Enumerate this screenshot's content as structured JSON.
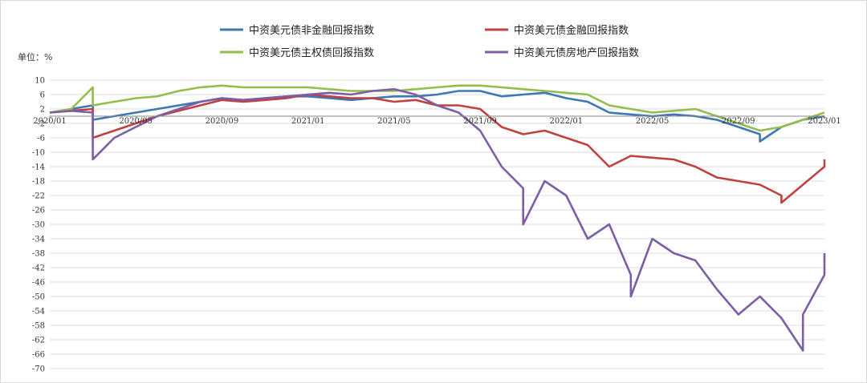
{
  "chart_data": {
    "type": "line",
    "unit_label": "单位：%",
    "y_ticks": [
      10,
      6,
      2,
      -2,
      -6,
      -10,
      -14,
      -18,
      -22,
      -26,
      -30,
      -34,
      -38,
      -42,
      -46,
      -50,
      -54,
      -58,
      -62,
      -66,
      -70
    ],
    "ylim": [
      -70,
      10
    ],
    "x_ticks": [
      "2020/01",
      "2020/05",
      "2020/09",
      "2021/01",
      "2021/05",
      "2021/09",
      "2022/01",
      "2022/05",
      "2022/09",
      "2023/01"
    ],
    "xlim": [
      "2020/01",
      "2023/01"
    ],
    "grid": true,
    "legend_position": "top",
    "series": [
      {
        "name": "中资美元债非金融回报指数",
        "color": "#3e77b6",
        "points": [
          [
            "2020/01",
            1
          ],
          [
            "2020/02",
            2
          ],
          [
            "2020/03",
            3
          ],
          [
            "2020/03",
            -1
          ],
          [
            "2020/04",
            0
          ],
          [
            "2020/05",
            1
          ],
          [
            "2020/06",
            2
          ],
          [
            "2020/07",
            3
          ],
          [
            "2020/08",
            4
          ],
          [
            "2020/09",
            5
          ],
          [
            "2020/10",
            4.5
          ],
          [
            "2020/11",
            5
          ],
          [
            "2020/12",
            5.5
          ],
          [
            "2021/01",
            5.5
          ],
          [
            "2021/02",
            5
          ],
          [
            "2021/03",
            4.5
          ],
          [
            "2021/04",
            5
          ],
          [
            "2021/05",
            5.5
          ],
          [
            "2021/06",
            5.5
          ],
          [
            "2021/07",
            6
          ],
          [
            "2021/08",
            7
          ],
          [
            "2021/09",
            7
          ],
          [
            "2021/10",
            5.5
          ],
          [
            "2021/11",
            6
          ],
          [
            "2021/12",
            6.5
          ],
          [
            "2022/01",
            5
          ],
          [
            "2022/02",
            4
          ],
          [
            "2022/03",
            1
          ],
          [
            "2022/04",
            0.5
          ],
          [
            "2022/05",
            0
          ],
          [
            "2022/06",
            0.5
          ],
          [
            "2022/07",
            0
          ],
          [
            "2022/08",
            -1
          ],
          [
            "2022/09",
            -3
          ],
          [
            "2022/10",
            -5
          ],
          [
            "2022/10",
            -7
          ],
          [
            "2022/11",
            -3
          ],
          [
            "2022/12",
            -1
          ],
          [
            "2023/01",
            0
          ]
        ]
      },
      {
        "name": "中资美元债金融回报指数",
        "color": "#c0413f",
        "points": [
          [
            "2020/01",
            1
          ],
          [
            "2020/02",
            1.5
          ],
          [
            "2020/03",
            2
          ],
          [
            "2020/03",
            -6
          ],
          [
            "2020/04",
            -4
          ],
          [
            "2020/05",
            -2
          ],
          [
            "2020/06",
            0
          ],
          [
            "2020/07",
            1.5
          ],
          [
            "2020/08",
            3
          ],
          [
            "2020/09",
            4.5
          ],
          [
            "2020/10",
            4
          ],
          [
            "2020/11",
            4.5
          ],
          [
            "2020/12",
            5
          ],
          [
            "2021/01",
            6
          ],
          [
            "2021/02",
            5.5
          ],
          [
            "2021/03",
            5
          ],
          [
            "2021/04",
            5
          ],
          [
            "2021/05",
            4
          ],
          [
            "2021/06",
            4.5
          ],
          [
            "2021/07",
            3
          ],
          [
            "2021/08",
            3
          ],
          [
            "2021/09",
            2
          ],
          [
            "2021/10",
            -3
          ],
          [
            "2021/11",
            -5
          ],
          [
            "2021/12",
            -4
          ],
          [
            "2022/01",
            -6
          ],
          [
            "2022/02",
            -8
          ],
          [
            "2022/03",
            -14
          ],
          [
            "2022/04",
            -11
          ],
          [
            "2022/05",
            -11.5
          ],
          [
            "2022/06",
            -12
          ],
          [
            "2022/07",
            -14
          ],
          [
            "2022/08",
            -17
          ],
          [
            "2022/09",
            -18
          ],
          [
            "2022/10",
            -19
          ],
          [
            "2022/11",
            -22
          ],
          [
            "2022/11",
            -24
          ],
          [
            "2022/12",
            -19
          ],
          [
            "2023/01",
            -14
          ],
          [
            "2023/01",
            -12
          ]
        ]
      },
      {
        "name": "中资美元债主权债回报指数",
        "color": "#93bd4c",
        "points": [
          [
            "2020/01",
            1
          ],
          [
            "2020/02",
            2
          ],
          [
            "2020/03",
            8
          ],
          [
            "2020/03",
            3
          ],
          [
            "2020/04",
            4
          ],
          [
            "2020/05",
            5
          ],
          [
            "2020/06",
            5.5
          ],
          [
            "2020/07",
            7
          ],
          [
            "2020/08",
            8
          ],
          [
            "2020/09",
            8.5
          ],
          [
            "2020/10",
            8
          ],
          [
            "2020/11",
            8
          ],
          [
            "2020/12",
            8
          ],
          [
            "2021/01",
            8
          ],
          [
            "2021/02",
            7.5
          ],
          [
            "2021/03",
            7
          ],
          [
            "2021/04",
            7
          ],
          [
            "2021/05",
            7
          ],
          [
            "2021/06",
            7.5
          ],
          [
            "2021/07",
            8
          ],
          [
            "2021/08",
            8.5
          ],
          [
            "2021/09",
            8.5
          ],
          [
            "2021/10",
            8
          ],
          [
            "2021/11",
            7.5
          ],
          [
            "2021/12",
            7
          ],
          [
            "2022/01",
            6.5
          ],
          [
            "2022/02",
            6
          ],
          [
            "2022/03",
            3
          ],
          [
            "2022/04",
            2
          ],
          [
            "2022/05",
            1
          ],
          [
            "2022/06",
            1.5
          ],
          [
            "2022/07",
            2
          ],
          [
            "2022/08",
            0
          ],
          [
            "2022/09",
            -2
          ],
          [
            "2022/10",
            -4
          ],
          [
            "2022/11",
            -3
          ],
          [
            "2022/12",
            -1
          ],
          [
            "2023/01",
            1
          ]
        ]
      },
      {
        "name": "中资美元债房地产回报指数",
        "color": "#7b5ea6",
        "points": [
          [
            "2020/01",
            1
          ],
          [
            "2020/02",
            1.5
          ],
          [
            "2020/03",
            1
          ],
          [
            "2020/03",
            -12
          ],
          [
            "2020/04",
            -6
          ],
          [
            "2020/05",
            -3
          ],
          [
            "2020/06",
            0
          ],
          [
            "2020/07",
            2
          ],
          [
            "2020/08",
            4
          ],
          [
            "2020/09",
            5
          ],
          [
            "2020/10",
            4.5
          ],
          [
            "2020/11",
            5
          ],
          [
            "2020/12",
            5.5
          ],
          [
            "2021/01",
            6
          ],
          [
            "2021/02",
            6.5
          ],
          [
            "2021/03",
            6
          ],
          [
            "2021/04",
            7
          ],
          [
            "2021/05",
            7.5
          ],
          [
            "2021/06",
            6
          ],
          [
            "2021/07",
            3
          ],
          [
            "2021/08",
            1
          ],
          [
            "2021/09",
            -4
          ],
          [
            "2021/10",
            -14
          ],
          [
            "2021/11",
            -20
          ],
          [
            "2021/11",
            -30
          ],
          [
            "2021/12",
            -18
          ],
          [
            "2022/01",
            -22
          ],
          [
            "2022/02",
            -34
          ],
          [
            "2022/03",
            -30
          ],
          [
            "2022/04",
            -44
          ],
          [
            "2022/04",
            -50
          ],
          [
            "2022/05",
            -34
          ],
          [
            "2022/06",
            -38
          ],
          [
            "2022/07",
            -40
          ],
          [
            "2022/08",
            -48
          ],
          [
            "2022/09",
            -55
          ],
          [
            "2022/10",
            -50
          ],
          [
            "2022/11",
            -56
          ],
          [
            "2022/12",
            -65
          ],
          [
            "2022/12",
            -55
          ],
          [
            "2023/01",
            -44
          ],
          [
            "2023/01",
            -38
          ]
        ]
      }
    ]
  }
}
